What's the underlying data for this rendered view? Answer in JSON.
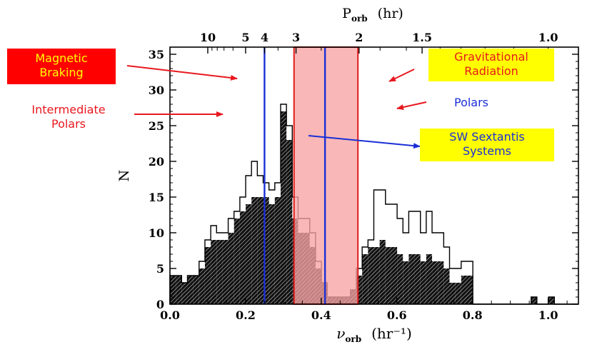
{
  "chart_data": {
    "type": "bar",
    "title": "",
    "xlabel_main": "ν",
    "xlabel_sub": "orb",
    "xlabel_unit": "(hr⁻¹)",
    "ylabel": "N",
    "top_axis_main": "P",
    "top_axis_sub": "orb",
    "top_axis_unit": "(hr)",
    "xlim": [
      0.0,
      1.08
    ],
    "ylim": [
      0,
      36
    ],
    "bin_width": 0.0154,
    "x_ticks": [
      "0.0",
      "0.2",
      "0.4",
      "0.6",
      "0.8",
      "1.0"
    ],
    "y_ticks": [
      "0",
      "5",
      "10",
      "15",
      "20",
      "25",
      "30",
      "35"
    ],
    "top_ticks": [
      {
        "label": "10",
        "period": 10
      },
      {
        "label": "5",
        "period": 5
      },
      {
        "label": "4",
        "period": 4
      },
      {
        "label": "3",
        "period": 3
      },
      {
        "label": "2",
        "period": 2
      },
      {
        "label": "1.5",
        "period": 1.5
      },
      {
        "label": "1.0",
        "period": 1.0
      }
    ],
    "series": [
      {
        "name": "",
        "style": "outline",
        "values": [
          4,
          4,
          3,
          4,
          4,
          6,
          9,
          11,
          10,
          10,
          12,
          13,
          15,
          18,
          20,
          18,
          17,
          16,
          17,
          28,
          25,
          15,
          12,
          12,
          10,
          6,
          3,
          1,
          1,
          1,
          1,
          2,
          5,
          8,
          9,
          16,
          16,
          14,
          14,
          12,
          10,
          13,
          13,
          10,
          13,
          10,
          10,
          8,
          5,
          5,
          6,
          6,
          0,
          0,
          0,
          0,
          0,
          0,
          0,
          0,
          0,
          0,
          1,
          0,
          0,
          1,
          0,
          0,
          0,
          0
        ]
      },
      {
        "name": "",
        "style": "hatched",
        "values": [
          4,
          4,
          3,
          4,
          4,
          5,
          8,
          9,
          9,
          9,
          10,
          12,
          13,
          14,
          15,
          15,
          15,
          14,
          15,
          27,
          23,
          12,
          10,
          10,
          8,
          5,
          3,
          1,
          1,
          1,
          1,
          2,
          4,
          7,
          8,
          8,
          9,
          8,
          8,
          7,
          6,
          7,
          7,
          6,
          7,
          6,
          6,
          5,
          3,
          3,
          4,
          4,
          0,
          0,
          0,
          0,
          0,
          0,
          0,
          0,
          0,
          0,
          1,
          0,
          0,
          1,
          0,
          0,
          0,
          0
        ]
      }
    ],
    "period_gap": {
      "from": 0.328,
      "to": 0.497
    },
    "vertical_lines": [
      0.25,
      0.41
    ],
    "colors": {
      "gap_fill": "#f7a3a3",
      "gap_edge": "#e01a1a",
      "vline": "#1a2fd6",
      "arrow_red": "#e8181e",
      "arrow_blue": "#1a2fd6",
      "magnetic_bg": "#ff0000",
      "gravitational_bg": "#ffff00",
      "sw_bg": "#ffff00"
    }
  },
  "annotations": {
    "magnetic": [
      "Magnetic",
      "Braking"
    ],
    "intermediate": [
      "Intermediate",
      "Polars"
    ],
    "gravitational": [
      "Gravitational",
      "Radiation"
    ],
    "polars": "Polars",
    "sw": [
      "SW Sextantis",
      "Systems"
    ]
  }
}
